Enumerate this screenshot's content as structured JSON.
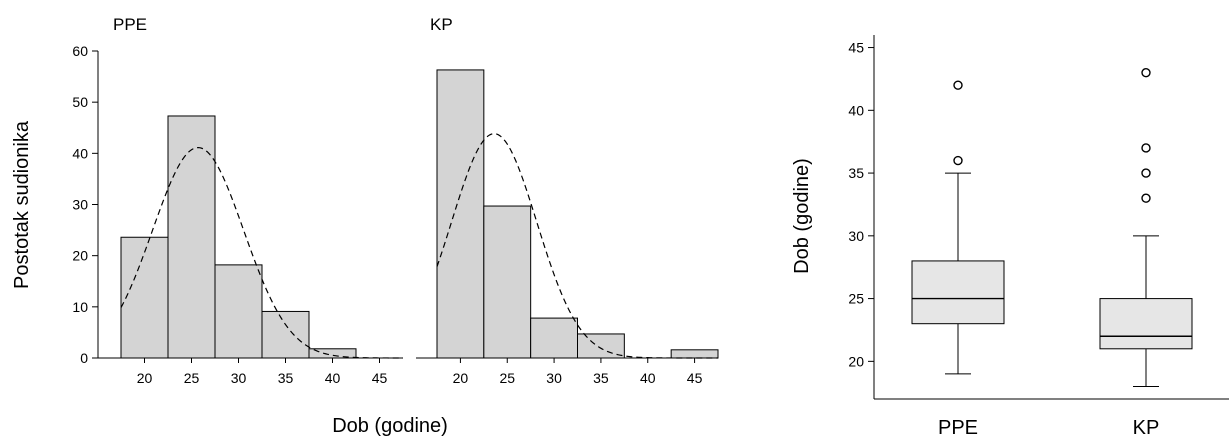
{
  "chart_data": [
    {
      "type": "bar",
      "title": "",
      "xlabel": "Dob (godine)",
      "ylabel": "Postotak sudionika",
      "bin_edges": [
        17.5,
        22.5,
        27.5,
        32.5,
        37.5,
        42.5,
        47.5
      ],
      "x_ticks": [
        20,
        25,
        30,
        35,
        40,
        45
      ],
      "xlim": [
        17.5,
        47.5
      ],
      "ylim": [
        0,
        60
      ],
      "y_ticks": [
        0,
        10,
        20,
        30,
        40,
        50,
        60
      ],
      "grid": false,
      "panels": [
        {
          "name": "PPE",
          "values": [
            23.6,
            47.3,
            18.2,
            9.1,
            1.8,
            0
          ],
          "normal_curve": {
            "mean": 25.7,
            "sd": 4.85
          }
        },
        {
          "name": "KP",
          "values": [
            56.3,
            29.7,
            7.8,
            4.7,
            0,
            1.6
          ],
          "normal_curve": {
            "mean": 23.6,
            "sd": 4.55
          }
        }
      ]
    },
    {
      "type": "box",
      "title": "",
      "xlabel": "",
      "ylabel": "Dob (godine)",
      "categories": [
        "PPE",
        "KP"
      ],
      "ylim": [
        17,
        46
      ],
      "y_ticks": [
        20,
        25,
        30,
        35,
        40,
        45
      ],
      "grid": false,
      "boxes": [
        {
          "name": "PPE",
          "min": 19,
          "q1": 23,
          "median": 25,
          "q3": 28,
          "max": 35,
          "outliers": [
            36,
            42
          ]
        },
        {
          "name": "KP",
          "min": 18,
          "q1": 21,
          "median": 22,
          "q3": 25,
          "max": 30,
          "outliers": [
            33,
            35,
            37,
            43
          ]
        }
      ]
    }
  ],
  "colors": {
    "bar_fill": "#d4d4d4",
    "box_fill": "#e6e6e6",
    "stroke": "#000000"
  }
}
